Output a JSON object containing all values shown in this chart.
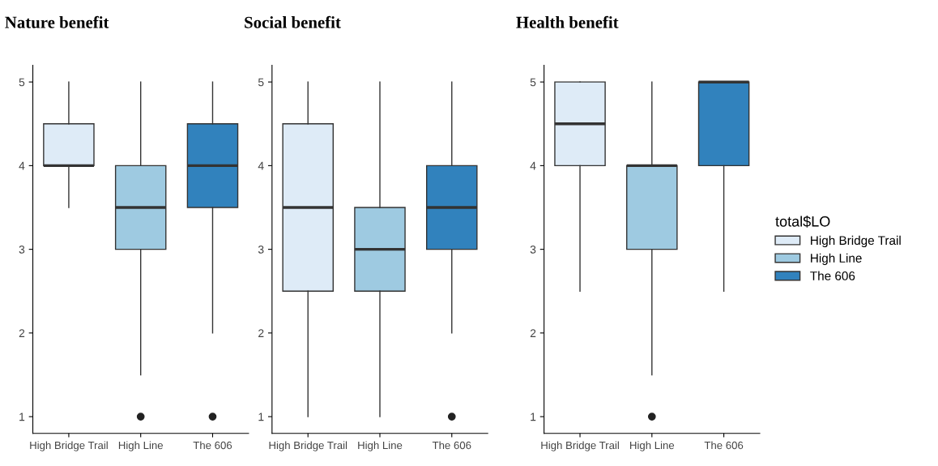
{
  "chart_data": [
    {
      "type": "box",
      "title": "Nature benefit",
      "categories": [
        "High Bridge Trail",
        "High Line",
        "The 606"
      ],
      "ylim": [
        0.8,
        5.2
      ],
      "yticks": [
        1,
        2,
        3,
        4,
        5
      ],
      "grid": false,
      "legend": false,
      "series": [
        {
          "color": "#deebf7",
          "boxes": [
            {
              "low": 3.5,
              "q1": 4,
              "median": 4,
              "q3": 4.5,
              "high": 5
            },
            null,
            null
          ]
        },
        {
          "color": "#9ecae1",
          "boxes": [
            null,
            {
              "low": 1.5,
              "q1": 3,
              "median": 3.5,
              "q3": 4,
              "high": 5,
              "outliers": [
                1
              ]
            },
            null
          ]
        },
        {
          "color": "#3182bd",
          "boxes": [
            null,
            null,
            {
              "low": 2,
              "q1": 3.5,
              "median": 4,
              "q3": 4.5,
              "high": 5,
              "outliers": [
                1
              ]
            }
          ]
        }
      ]
    },
    {
      "type": "box",
      "title": "Social benefit",
      "categories": [
        "High Bridge Trail",
        "High Line",
        "The 606"
      ],
      "ylim": [
        0.8,
        5.2
      ],
      "yticks": [
        1,
        2,
        3,
        4,
        5
      ],
      "grid": false,
      "legend": false,
      "series": [
        {
          "color": "#deebf7",
          "boxes": [
            {
              "low": 1,
              "q1": 2.5,
              "median": 3.5,
              "q3": 4.5,
              "high": 5
            },
            null,
            null
          ]
        },
        {
          "color": "#9ecae1",
          "boxes": [
            null,
            {
              "low": 1,
              "q1": 2.5,
              "median": 3,
              "q3": 3.5,
              "high": 5
            },
            null
          ]
        },
        {
          "color": "#3182bd",
          "boxes": [
            null,
            null,
            {
              "low": 2,
              "q1": 3,
              "median": 3.5,
              "q3": 4,
              "high": 5,
              "outliers": [
                1
              ]
            }
          ]
        }
      ]
    },
    {
      "type": "box",
      "title": "Health benefit",
      "categories": [
        "High Bridge Trail",
        "High Line",
        "The 606"
      ],
      "ylim": [
        0.8,
        5.2
      ],
      "yticks": [
        1,
        2,
        3,
        4,
        5
      ],
      "grid": false,
      "legend": "right",
      "legend_title": "total$LO",
      "series": [
        {
          "name": "High Bridge Trail",
          "color": "#deebf7",
          "boxes": [
            {
              "low": 2.5,
              "q1": 4,
              "median": 4.5,
              "q3": 5,
              "high": 5
            },
            null,
            null
          ]
        },
        {
          "name": "High Line",
          "color": "#9ecae1",
          "boxes": [
            null,
            {
              "low": 1.5,
              "q1": 3,
              "median": 4,
              "q3": 4,
              "high": 5,
              "outliers": [
                1
              ]
            },
            null
          ]
        },
        {
          "name": "The 606",
          "color": "#3182bd",
          "boxes": [
            null,
            null,
            {
              "low": 2.5,
              "q1": 4,
              "median": 5,
              "q3": 5,
              "high": 5
            }
          ]
        }
      ]
    }
  ]
}
